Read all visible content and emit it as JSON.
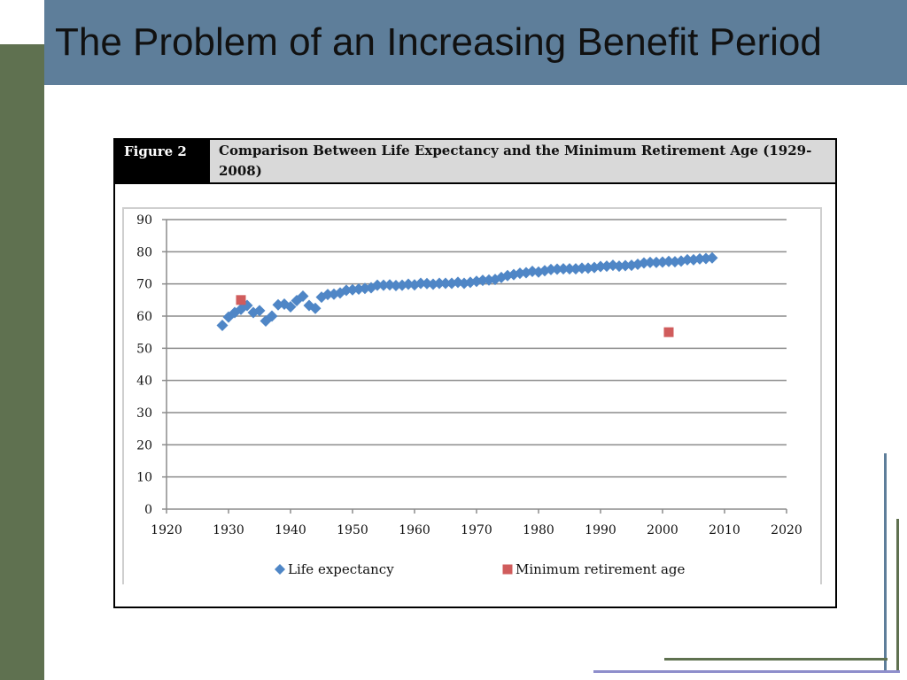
{
  "slide": {
    "title": "The Problem of an Increasing Benefit Period"
  },
  "figure": {
    "label": "Figure 2",
    "caption": "Comparison Between Life Expectancy and the Minimum Retirement Age (1929-2008)"
  },
  "colors": {
    "left_bar": "#5f7150",
    "title_band": "#5e7e9a",
    "life_expectancy": "#4f86c6",
    "minimum_retirement_age": "#d05c5c"
  },
  "chart_data": {
    "type": "scatter",
    "title": "",
    "xlabel": "",
    "ylabel": "",
    "xlim": [
      1920,
      2020
    ],
    "ylim": [
      0,
      90
    ],
    "x_ticks": [
      1920,
      1930,
      1940,
      1950,
      1960,
      1970,
      1980,
      1990,
      2000,
      2010,
      2020
    ],
    "y_ticks": [
      0,
      10,
      20,
      30,
      40,
      50,
      60,
      70,
      80,
      90
    ],
    "grid": "horizontal",
    "legend_position": "bottom",
    "series": [
      {
        "name": "Life expectancy",
        "marker": "diamond",
        "color": "#4f86c6",
        "points": [
          [
            1929,
            57.1
          ],
          [
            1930,
            59.7
          ],
          [
            1931,
            61.1
          ],
          [
            1932,
            62.1
          ],
          [
            1933,
            63.3
          ],
          [
            1934,
            61.1
          ],
          [
            1935,
            61.7
          ],
          [
            1936,
            58.5
          ],
          [
            1937,
            60.0
          ],
          [
            1938,
            63.5
          ],
          [
            1939,
            63.7
          ],
          [
            1940,
            62.9
          ],
          [
            1941,
            64.8
          ],
          [
            1942,
            66.2
          ],
          [
            1943,
            63.3
          ],
          [
            1944,
            62.4
          ],
          [
            1945,
            65.9
          ],
          [
            1946,
            66.7
          ],
          [
            1947,
            66.8
          ],
          [
            1948,
            67.2
          ],
          [
            1949,
            68.0
          ],
          [
            1950,
            68.2
          ],
          [
            1951,
            68.4
          ],
          [
            1952,
            68.6
          ],
          [
            1953,
            68.8
          ],
          [
            1954,
            69.6
          ],
          [
            1955,
            69.6
          ],
          [
            1956,
            69.7
          ],
          [
            1957,
            69.5
          ],
          [
            1958,
            69.6
          ],
          [
            1959,
            69.9
          ],
          [
            1960,
            69.7
          ],
          [
            1961,
            70.2
          ],
          [
            1962,
            70.1
          ],
          [
            1963,
            69.9
          ],
          [
            1964,
            70.2
          ],
          [
            1965,
            70.2
          ],
          [
            1966,
            70.2
          ],
          [
            1967,
            70.5
          ],
          [
            1968,
            70.2
          ],
          [
            1969,
            70.5
          ],
          [
            1970,
            70.8
          ],
          [
            1971,
            71.1
          ],
          [
            1972,
            71.2
          ],
          [
            1973,
            71.4
          ],
          [
            1974,
            72.0
          ],
          [
            1975,
            72.6
          ],
          [
            1976,
            72.9
          ],
          [
            1977,
            73.3
          ],
          [
            1978,
            73.5
          ],
          [
            1979,
            73.9
          ],
          [
            1980,
            73.7
          ],
          [
            1981,
            74.1
          ],
          [
            1982,
            74.5
          ],
          [
            1983,
            74.6
          ],
          [
            1984,
            74.7
          ],
          [
            1985,
            74.7
          ],
          [
            1986,
            74.7
          ],
          [
            1987,
            74.9
          ],
          [
            1988,
            74.9
          ],
          [
            1989,
            75.1
          ],
          [
            1990,
            75.4
          ],
          [
            1991,
            75.5
          ],
          [
            1992,
            75.8
          ],
          [
            1993,
            75.5
          ],
          [
            1994,
            75.7
          ],
          [
            1995,
            75.8
          ],
          [
            1996,
            76.1
          ],
          [
            1997,
            76.5
          ],
          [
            1998,
            76.7
          ],
          [
            1999,
            76.7
          ],
          [
            2000,
            76.8
          ],
          [
            2001,
            77.0
          ],
          [
            2002,
            76.9
          ],
          [
            2003,
            77.1
          ],
          [
            2004,
            77.5
          ],
          [
            2005,
            77.5
          ],
          [
            2006,
            77.8
          ],
          [
            2007,
            77.9
          ],
          [
            2008,
            78.1
          ]
        ]
      },
      {
        "name": "Minimum retirement age",
        "marker": "square",
        "color": "#d05c5c",
        "points": [
          [
            1932,
            65
          ],
          [
            2001,
            55
          ]
        ]
      }
    ]
  }
}
